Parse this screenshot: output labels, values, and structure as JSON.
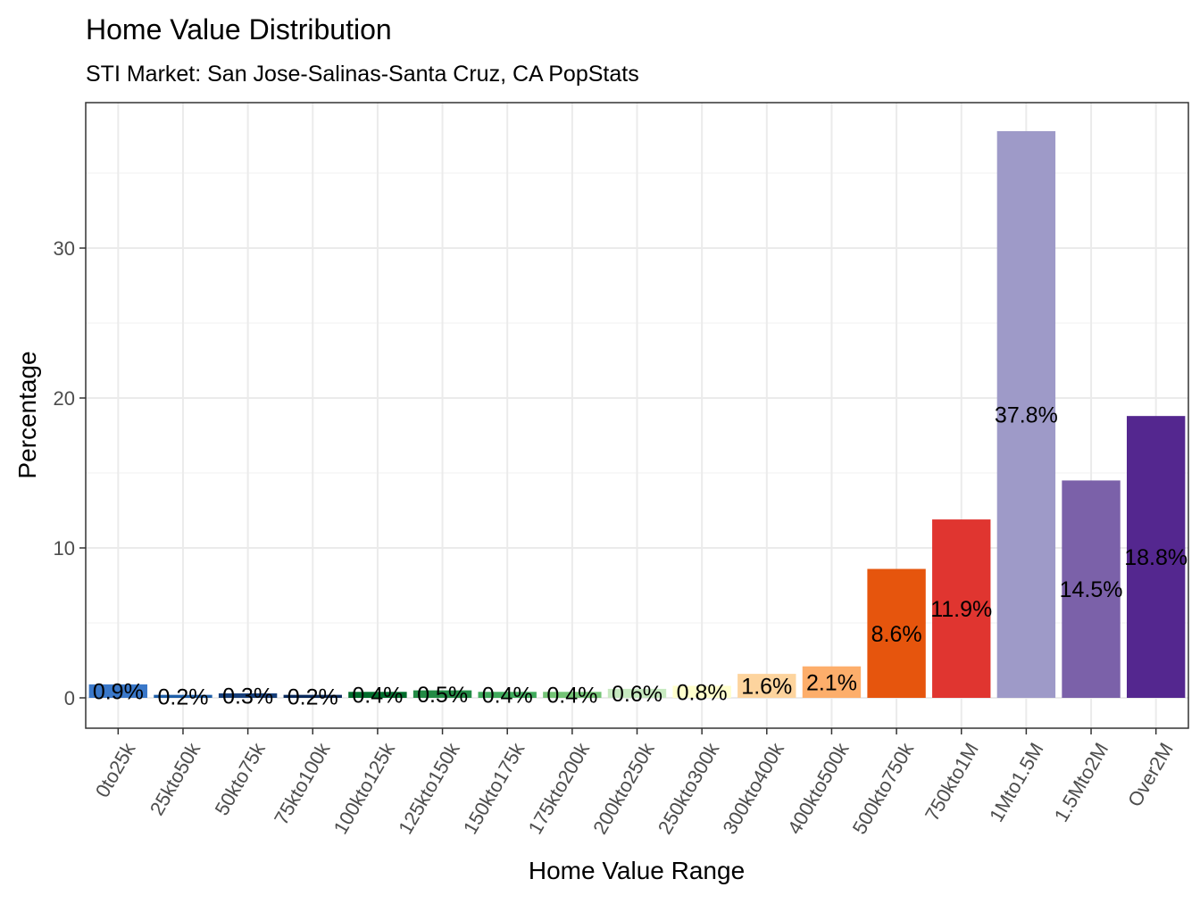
{
  "chart_data": {
    "type": "bar",
    "title": "Home Value Distribution",
    "subtitle": "STI Market: San Jose-Salinas-Santa Cruz, CA PopStats",
    "xlabel": "Home Value Range",
    "ylabel": "Percentage",
    "ylim": [
      -2,
      40
    ],
    "yticks": [
      0,
      10,
      20,
      30
    ],
    "grid": true,
    "categories": [
      "0to25k",
      "25kto50k",
      "50kto75k",
      "75kto100k",
      "100kto125k",
      "125kto150k",
      "150kto175k",
      "175kto200k",
      "200kto250k",
      "250kto300k",
      "300kto400k",
      "400kto500k",
      "500kto750k",
      "750kto1M",
      "1Mto1.5M",
      "1.5Mto2M",
      "Over2M"
    ],
    "values": [
      0.9,
      0.2,
      0.3,
      0.2,
      0.4,
      0.5,
      0.4,
      0.4,
      0.6,
      0.8,
      1.6,
      2.1,
      8.6,
      11.9,
      37.8,
      14.5,
      18.8
    ],
    "labels": [
      "0.9%",
      "0.2%",
      "0.3%",
      "0.2%",
      "0.4%",
      "0.5%",
      "0.4%",
      "0.4%",
      "0.6%",
      "0.8%",
      "1.6%",
      "2.1%",
      "8.6%",
      "11.9%",
      "37.8%",
      "14.5%",
      "18.8%"
    ],
    "colors": [
      "#3A78C9",
      "#1F5FA8",
      "#173F7A",
      "#0A2A5C",
      "#006D2C",
      "#238B45",
      "#41AB5D",
      "#74C476",
      "#C7E9C0",
      "#FFFFCC",
      "#FDD49E",
      "#FDAE6B",
      "#E6550D",
      "#E03530",
      "#9E9AC8",
      "#7B61A9",
      "#54278F"
    ]
  }
}
